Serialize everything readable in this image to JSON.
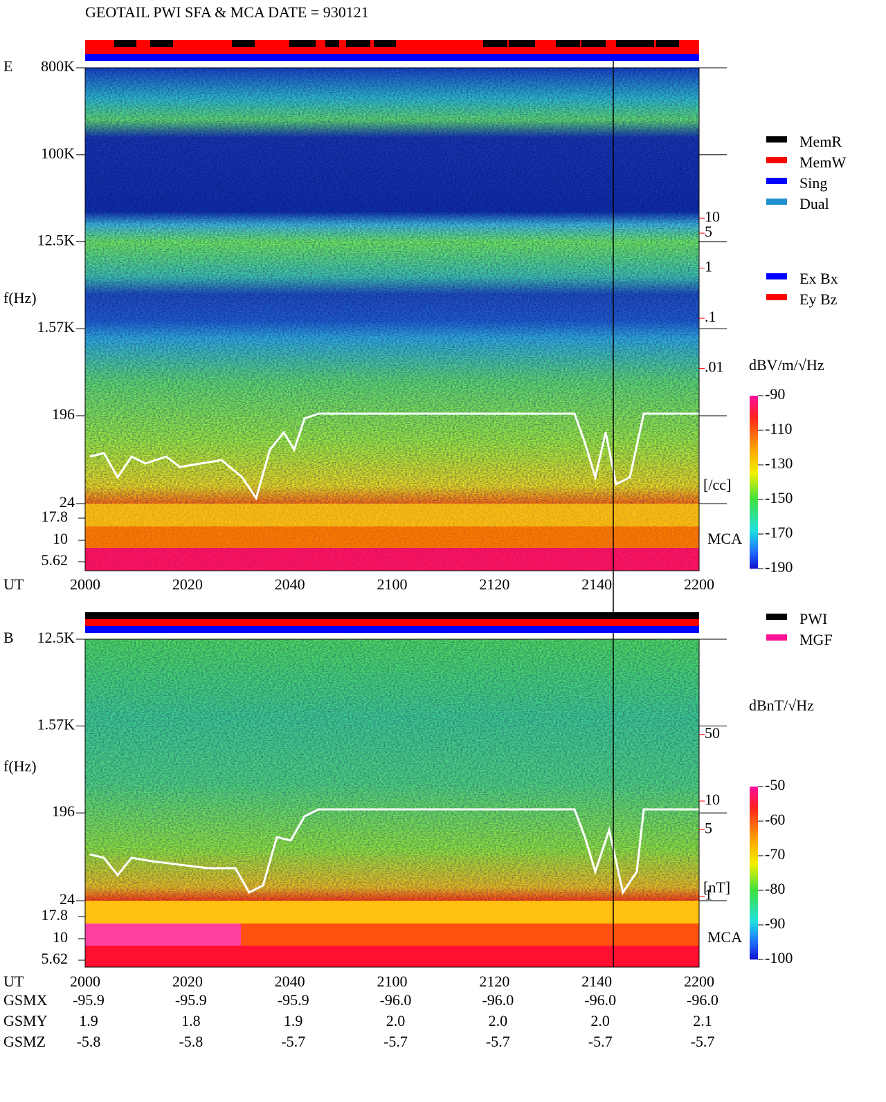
{
  "chart_data": [
    {
      "type": "spectrogram",
      "title": "GEOTAIL  PWI SFA & MCA   DATE = 930121",
      "panel_label": "E",
      "y_label": "f(Hz)",
      "x_label": "UT",
      "x_labels": [
        "2000",
        "2020",
        "2040",
        "2100",
        "2120",
        "2140",
        "2200"
      ],
      "log_scale": true,
      "ylim": [
        24,
        800000
      ],
      "yticks": [
        {
          "value": 800000,
          "label": "800K"
        },
        {
          "value": 100000,
          "label": "100K"
        },
        {
          "value": 12500,
          "label": "12.5K"
        },
        {
          "value": 1570,
          "label": "1.57K"
        },
        196,
        24
      ],
      "mca_labels": [
        "17.8",
        "10",
        "5.62"
      ],
      "mca_label": "MCA",
      "density_ylim": [
        2e-05,
        10000
      ],
      "density_ticks": [
        10,
        5,
        1,
        {
          "value": 0.1,
          "label": ".1"
        },
        {
          "value": 0.01,
          "label": ".01"
        }
      ],
      "density_unit": "[/cc]",
      "density_color": "#ff0000",
      "legend": [
        {
          "name": "MemR",
          "color": "#000000"
        },
        {
          "name": "MemW",
          "color": "#ff0000"
        },
        {
          "name": "Sing",
          "color": "#0000ff"
        },
        {
          "name": "Dual",
          "color": "#2090d0"
        }
      ],
      "legend2": [
        {
          "name": "Ex Bx",
          "color": "#0000ff"
        },
        {
          "name": "Ey Bz",
          "color": "#ff0000"
        }
      ],
      "colorbar_label": "dBV/m/√Hz",
      "clim": [
        -190,
        -90
      ],
      "cticks": [
        -90,
        -110,
        -130,
        -150,
        -170,
        -190
      ]
    },
    {
      "type": "spectrogram",
      "panel_label": "B",
      "y_label": "f(Hz)",
      "x_label": "UT",
      "x_labels": [
        "2000",
        "2020",
        "2040",
        "2100",
        "2120",
        "2140",
        "2200"
      ],
      "log_scale": true,
      "ylim": [
        24,
        12500
      ],
      "yticks": [
        {
          "value": 12500,
          "label": "12.5K"
        },
        {
          "value": 1570,
          "label": "1.57K"
        },
        196,
        24
      ],
      "mca_labels": [
        "17.8",
        "10",
        "5.62"
      ],
      "mca_label": "MCA",
      "density_ylim": [
        0.9,
        500
      ],
      "density_ticks": [
        50,
        10,
        5,
        1
      ],
      "density_unit": "[nT]",
      "density_color": "#ff0000",
      "legend": [
        {
          "name": "PWI",
          "color": "#000000"
        },
        {
          "name": "MGF",
          "color": "#ff1493"
        }
      ],
      "colorbar_label": "dBnT/√Hz",
      "clim": [
        -100,
        -50
      ],
      "cticks": [
        -50,
        -60,
        -70,
        -80,
        -90,
        -100
      ],
      "orbit": [
        {
          "name": "GSMX",
          "values": [
            "-95.9",
            "-95.9",
            "-95.9",
            "-96.0",
            "-96.0",
            "-96.0",
            "-96.0"
          ]
        },
        {
          "name": "GSMY",
          "values": [
            "1.9",
            "1.8",
            "1.9",
            "2.0",
            "2.0",
            "2.0",
            "2.1"
          ]
        },
        {
          "name": "GSMZ",
          "values": [
            "-5.8",
            "-5.8",
            "-5.7",
            "-5.7",
            "-5.7",
            "-5.7",
            "-5.7"
          ]
        }
      ]
    }
  ]
}
